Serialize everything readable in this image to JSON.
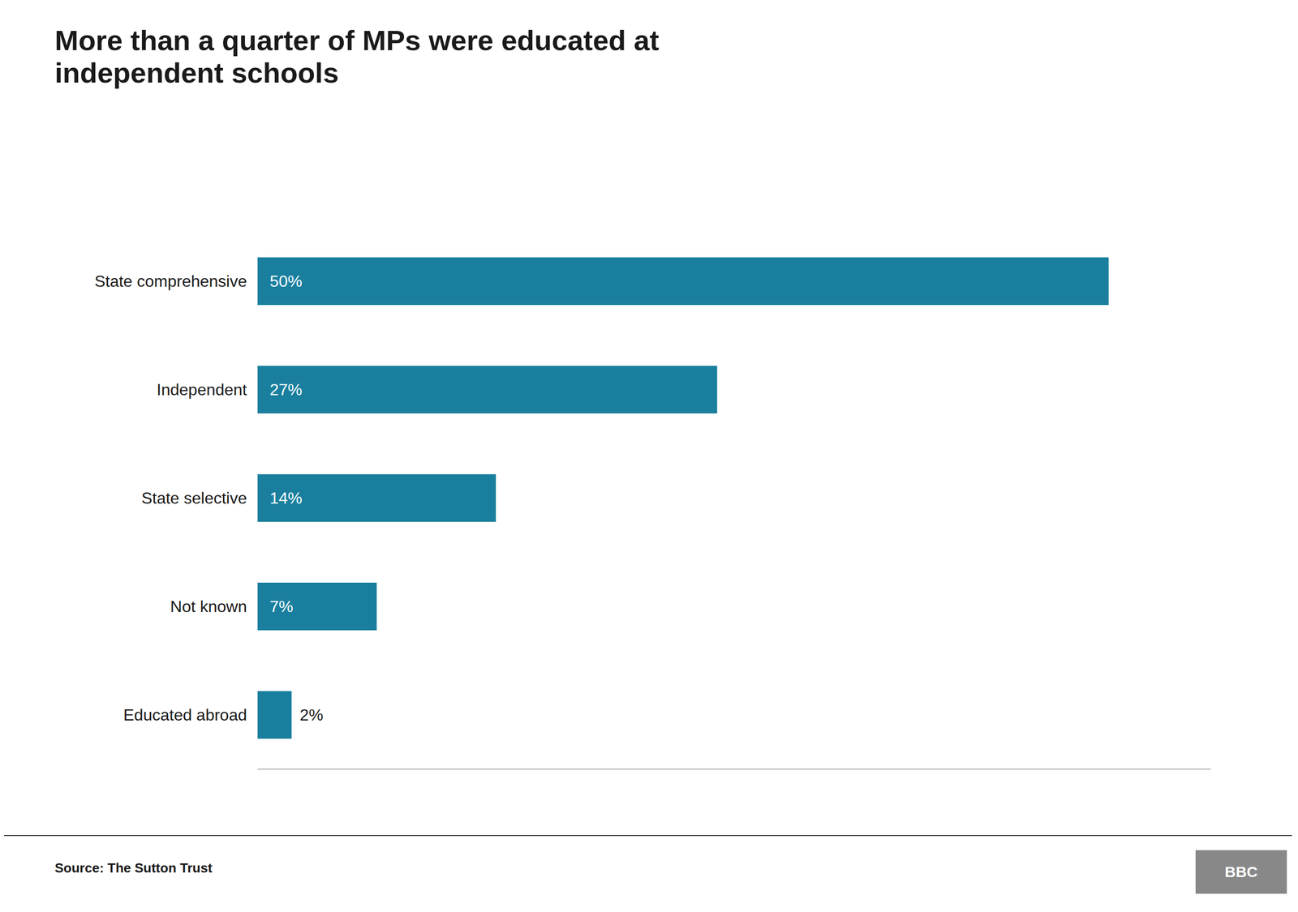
{
  "chart_data": {
    "type": "bar",
    "orientation": "horizontal",
    "title": "More than a quarter of MPs were educated at\nindependent schools",
    "categories": [
      "State comprehensive",
      "Independent",
      "State selective",
      "Not known",
      "Educated abroad"
    ],
    "values": [
      50,
      27,
      14,
      7,
      2
    ],
    "value_labels": [
      "50%",
      "27%",
      "14%",
      "7%",
      "2%"
    ],
    "data_labels": true,
    "color": "#1a7f9e",
    "xlim": [
      0,
      56
    ],
    "tick_labels": "y",
    "grid": false,
    "annotations": [
      "Source: The Sutton Trust",
      "BBC"
    ]
  }
}
